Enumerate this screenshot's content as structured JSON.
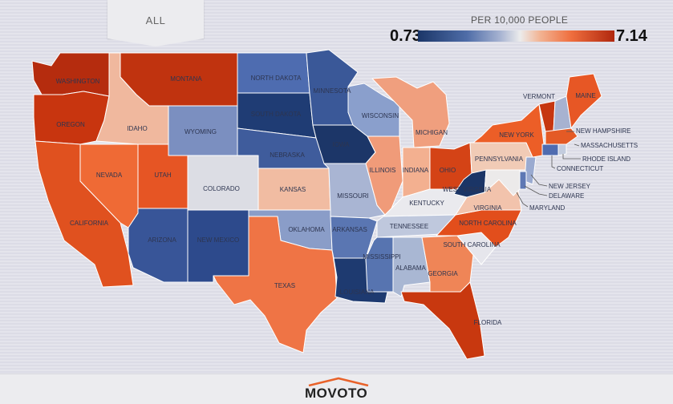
{
  "filter_tab": {
    "label": "ALL"
  },
  "legend": {
    "title": "PER 10,000 PEOPLE",
    "min": "0.73",
    "max": "7.14",
    "scale_colors": [
      "#1b3668",
      "#4f6da8",
      "#a8b4d2",
      "#ececec",
      "#f2b494",
      "#ef6e3e",
      "#b0270e"
    ]
  },
  "states": {
    "washington": "WASHINGTON",
    "oregon": "OREGON",
    "california": "CALIFORNIA",
    "nevada": "NEVADA",
    "idaho": "IDAHO",
    "montana": "MONTANA",
    "wyoming": "WYOMING",
    "utah": "UTAH",
    "arizona": "ARIZONA",
    "colorado": "COLORADO",
    "new_mexico": "NEW MEXICO",
    "north_dakota": "NORTH DAKOTA",
    "south_dakota": "SOUTH DAKOTA",
    "nebraska": "NEBRASKA",
    "kansas": "KANSAS",
    "oklahoma": "OKLAHOMA",
    "texas": "TEXAS",
    "minnesota": "MINNESOTA",
    "iowa": "IOWA",
    "missouri": "MISSOURI",
    "arkansas": "ARKANSAS",
    "louisiana": "LOUISIANA",
    "wisconsin": "WISCONSIN",
    "illinois": "ILLINOIS",
    "michigan": "MICHIGAN",
    "indiana": "INDIANA",
    "ohio": "OHIO",
    "kentucky": "KENTUCKY",
    "tennessee": "TENNESSEE",
    "mississippi": "MISSISSIPPI",
    "alabama": "ALABAMA",
    "georgia": "GEORGIA",
    "florida": "FLORIDA",
    "south_carolina": "SOUTH CAROLINA",
    "north_carolina": "NORTH CAROLINA",
    "virginia": "VIRGINIA",
    "west_virginia": "WEST VIRGINIA",
    "pennsylvania": "PENNSYLVANIA",
    "new_york": "NEW YORK",
    "vermont": "VERMONT",
    "new_hampshire": "NEW HAMPSHIRE",
    "maine": "MAINE",
    "massachusetts": "MASSACHUSETTS",
    "rhode_island": "RHODE ISLAND",
    "connecticut": "CONNECTICUT",
    "new_jersey": "NEW JERSEY",
    "delaware": "DELAWARE",
    "maryland": "MARYLAND"
  },
  "state_colors": {
    "washington": "#b52c0e",
    "oregon": "#c8350f",
    "california": "#e0511f",
    "nevada": "#ef6a35",
    "idaho": "#f0b89e",
    "montana": "#c0330f",
    "wyoming": "#7b8fc0",
    "utah": "#e65524",
    "arizona": "#385598",
    "colorado": "#dcdde4",
    "new_mexico": "#2d4a8c",
    "north_dakota": "#4e6cb0",
    "south_dakota": "#1f3c74",
    "nebraska": "#3f5c9c",
    "kansas": "#f1bca2",
    "oklahoma": "#8a9dc8",
    "texas": "#ef7445",
    "minnesota": "#3a5898",
    "iowa": "#1c3668",
    "missouri": "#a9b5d3",
    "arkansas": "#5a76b2",
    "louisiana": "#1e3a70",
    "wisconsin": "#8a9fcc",
    "illinois": "#f09b79",
    "michigan": "#f09f7e",
    "indiana": "#f3b090",
    "ohio": "#d44316",
    "kentucky": "#eaeaee",
    "tennessee": "#bfc8dd",
    "mississippi": "#5774b0",
    "alabama": "#a9b7d3",
    "georgia": "#ef8557",
    "florida": "#c8380f",
    "south_carolina": "#e6e6ec",
    "north_carolina": "#e24e1c",
    "virginia": "#f2c3ac",
    "west_virginia": "#1b3566",
    "pennsylvania": "#f1cbb6",
    "new_york": "#ec5e27",
    "vermont": "#c63610",
    "new_hampshire": "#a7b2d0",
    "maine": "#e75725",
    "massachusetts": "#e45a25",
    "rhode_island": "#c3ccde",
    "connecticut": "#4f6cb0",
    "new_jersey": "#9aaad0",
    "delaware": "#5e78b4",
    "maryland": "#eceaea"
  },
  "footer": {
    "brand": "MOVOTO"
  }
}
